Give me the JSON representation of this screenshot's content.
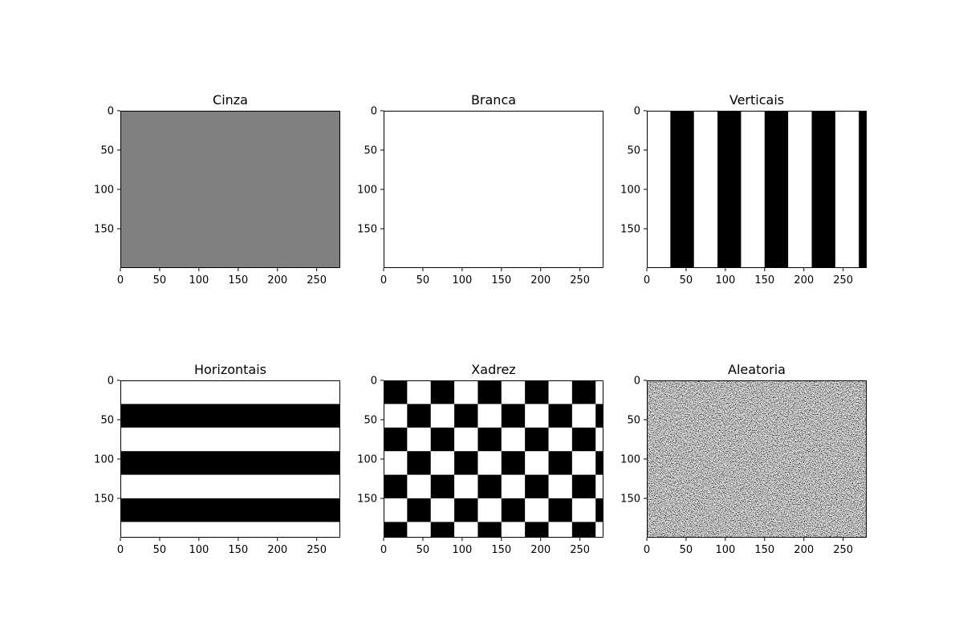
{
  "chart_data": {
    "type": "heatmap",
    "colormap": "gray",
    "value_range": [
      0,
      1
    ],
    "grid": false,
    "image_width": 280,
    "image_height": 200,
    "panels": [
      {
        "title": "Cinza",
        "pattern": "uniform",
        "value": 0.5,
        "xticks": [
          0,
          50,
          100,
          150,
          200,
          250
        ],
        "yticks": [
          0,
          50,
          100,
          150
        ],
        "xlim": [
          0,
          280
        ],
        "ylim": [
          200,
          0
        ]
      },
      {
        "title": "Branca",
        "pattern": "uniform",
        "value": 1,
        "xticks": [
          0,
          50,
          100,
          150,
          200,
          250
        ],
        "yticks": [
          0,
          50,
          100,
          150
        ],
        "xlim": [
          0,
          280
        ],
        "ylim": [
          200,
          0
        ]
      },
      {
        "title": "Verticais",
        "pattern": "vertical-stripes",
        "period": 60,
        "stripe_width": 30,
        "first_value": 1,
        "second_value": 0,
        "xticks": [
          0,
          50,
          100,
          150,
          200,
          250
        ],
        "yticks": [
          0,
          50,
          100,
          150
        ],
        "xlim": [
          0,
          280
        ],
        "ylim": [
          200,
          0
        ]
      },
      {
        "title": "Horizontais",
        "pattern": "horizontal-stripes",
        "period": 60,
        "stripe_width": 30,
        "first_value": 1,
        "second_value": 0,
        "xticks": [
          0,
          50,
          100,
          150,
          200,
          250
        ],
        "yticks": [
          0,
          50,
          100,
          150
        ],
        "xlim": [
          0,
          280
        ],
        "ylim": [
          200,
          0
        ]
      },
      {
        "title": "Xadrez",
        "pattern": "checkerboard",
        "cell_size": 30,
        "first_value": 0,
        "second_value": 1,
        "xticks": [
          0,
          50,
          100,
          150,
          200,
          250
        ],
        "yticks": [
          0,
          50,
          100,
          150
        ],
        "xlim": [
          0,
          280
        ],
        "ylim": [
          200,
          0
        ]
      },
      {
        "title": "Aleatoria",
        "pattern": "random-noise",
        "xticks": [
          0,
          50,
          100,
          150,
          200,
          250
        ],
        "yticks": [
          0,
          50,
          100,
          150
        ],
        "xlim": [
          0,
          280
        ],
        "ylim": [
          200,
          0
        ]
      }
    ]
  }
}
